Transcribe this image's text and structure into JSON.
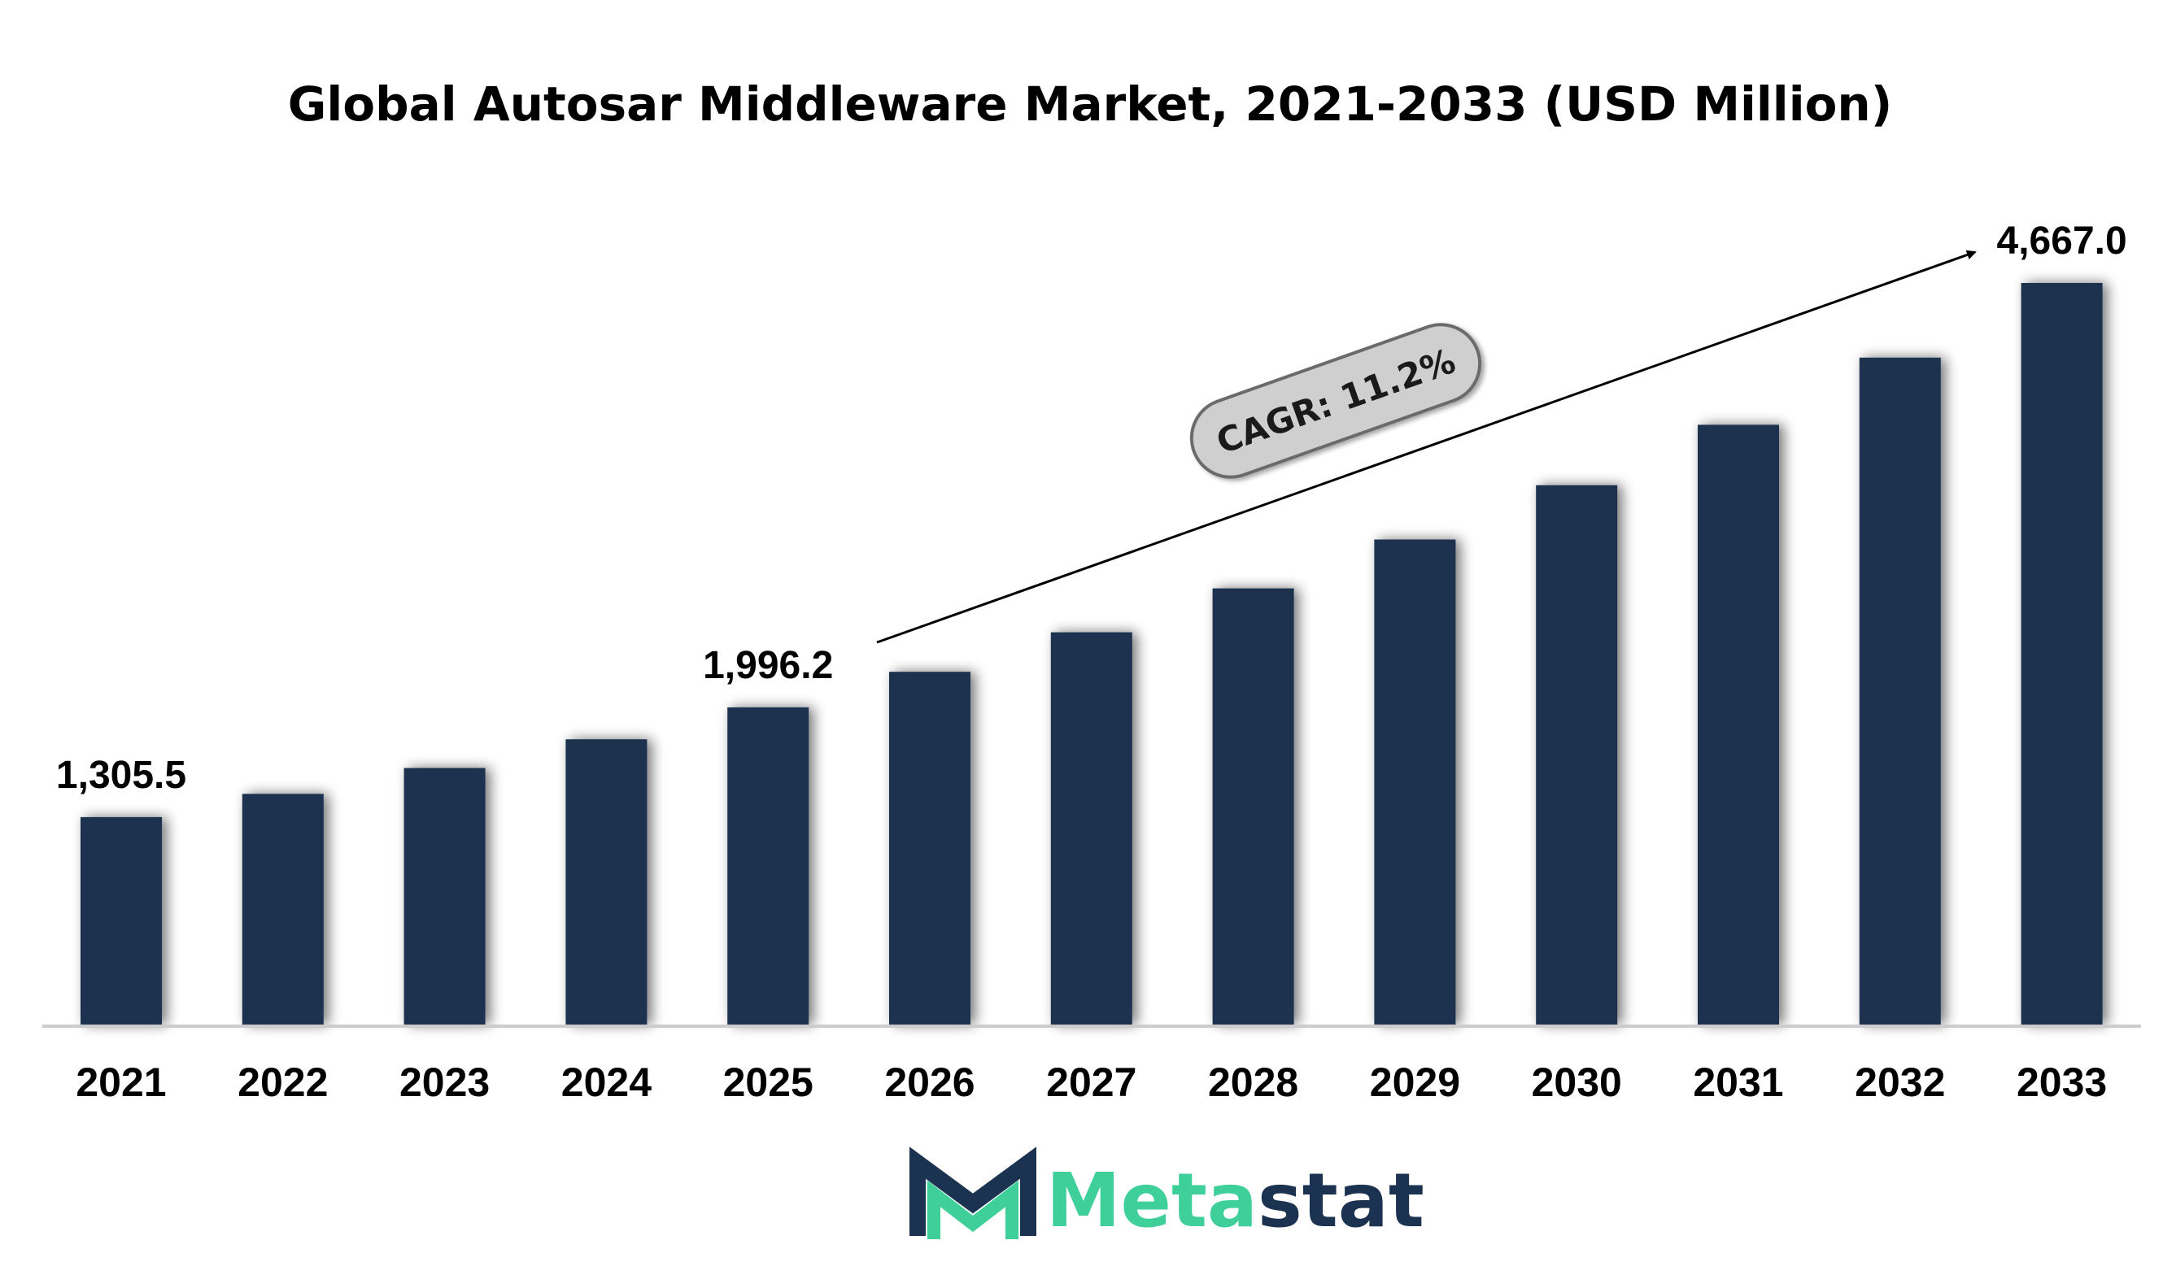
{
  "chart_data": {
    "type": "bar",
    "title": "Global Autosar Middleware Market, 2021-2033 (USD Million)",
    "xlabel": "",
    "ylabel": "",
    "categories": [
      "2021",
      "2022",
      "2023",
      "2024",
      "2025",
      "2026",
      "2027",
      "2028",
      "2029",
      "2030",
      "2031",
      "2032",
      "2033"
    ],
    "values": [
      1305.5,
      1451.8,
      1614.4,
      1795.2,
      1996.2,
      2219.8,
      2468.4,
      2744.9,
      3052.3,
      3394.2,
      3774.3,
      4197.0,
      4667.0
    ],
    "data_labels": [
      {
        "category": "2021",
        "text": "1,305.5"
      },
      {
        "category": "2025",
        "text": "1,996.2"
      },
      {
        "category": "2033",
        "text": "4,667.0"
      }
    ],
    "annotation": {
      "text": "CAGR: 11.2%",
      "from_category": "2026",
      "to_category": "2033"
    },
    "ylim": [
      0,
      4667.0
    ],
    "grid": false,
    "legend": "none",
    "colors": {
      "bar": "#1b3350",
      "axis": "#cccccc",
      "badge_fill": "#cfcfcf",
      "badge_stroke": "#6a6a6a"
    }
  },
  "brand": {
    "name_part1": "Meta",
    "name_part2": "stat",
    "color_part1": "#3ecf9b",
    "color_part2": "#1b3350"
  }
}
